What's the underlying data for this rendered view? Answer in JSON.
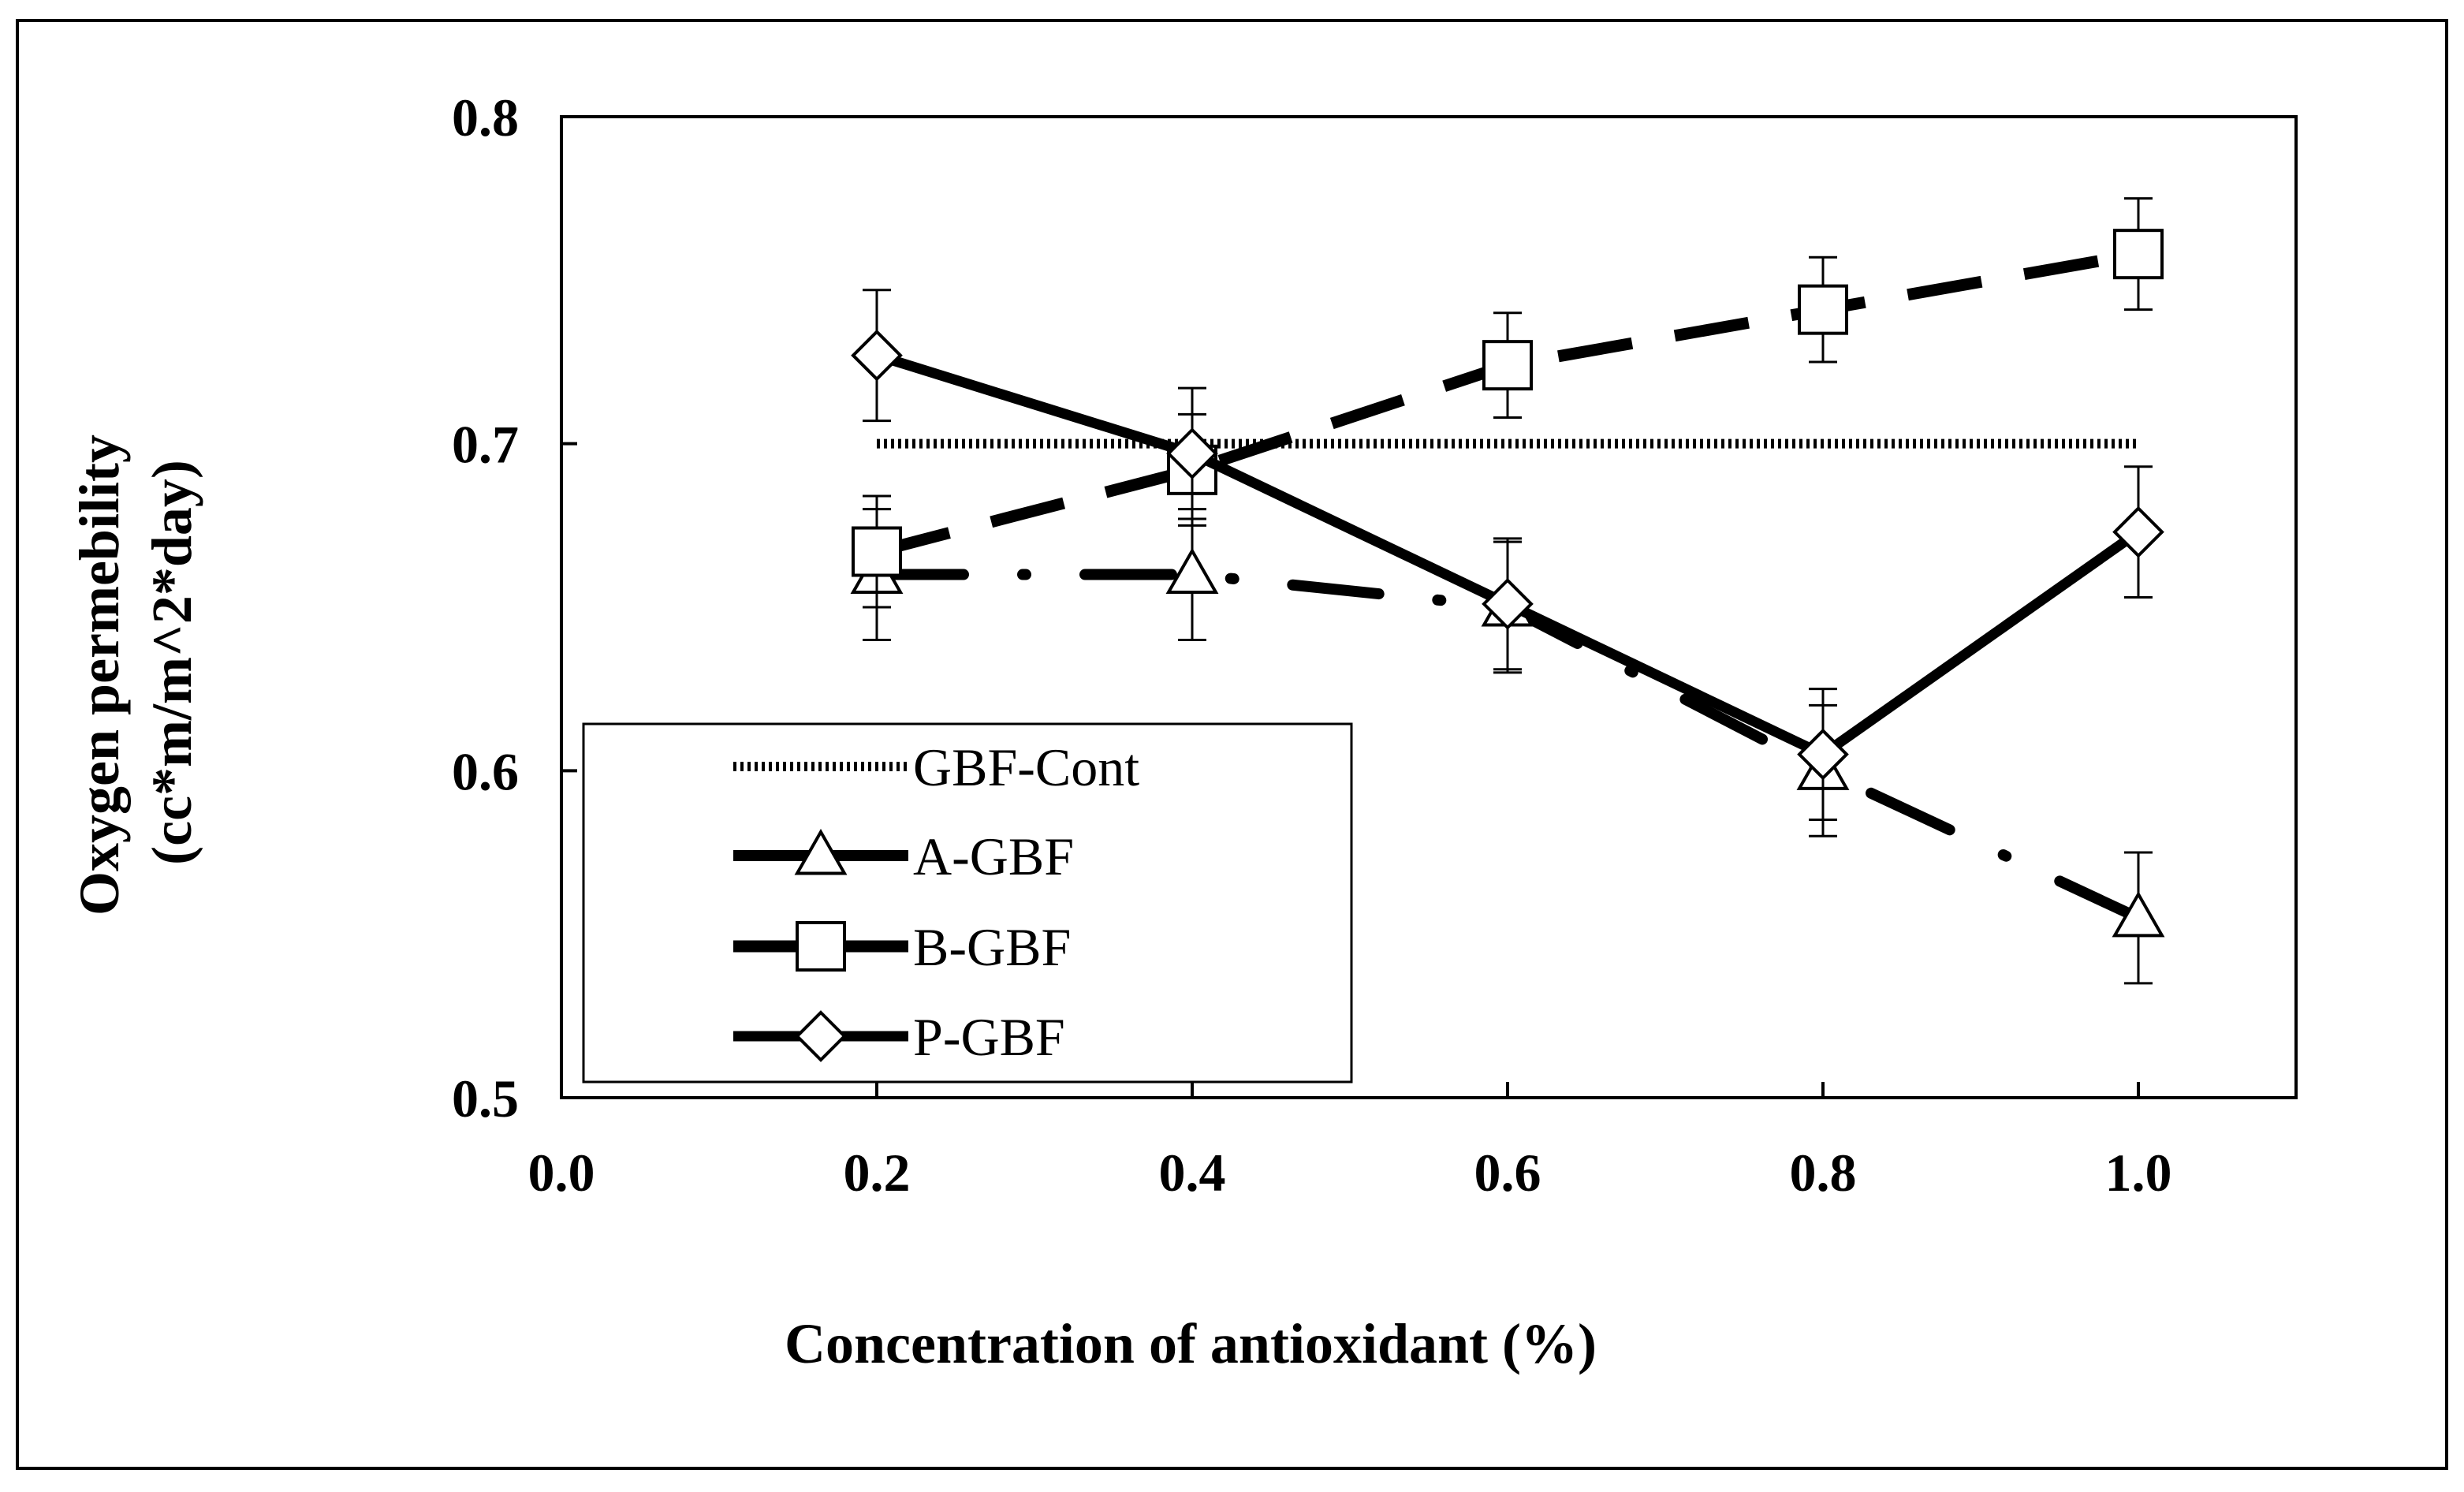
{
  "chart_data": {
    "type": "line",
    "xlabel": "Concentration of antioxidant (%)",
    "ylabel_line1": "Oxygen permebility",
    "ylabel_line2": "(cc*m/m^2*day)",
    "xlim": [
      0.0,
      1.1
    ],
    "ylim": [
      0.5,
      0.8
    ],
    "xticks": [
      0.0,
      0.2,
      0.4,
      0.6,
      0.8,
      1.0
    ],
    "xtick_labels": [
      "0.0",
      "0.2",
      "0.4",
      "0.6",
      "0.8",
      "1.0"
    ],
    "yticks": [
      0.5,
      0.6,
      0.7,
      0.8
    ],
    "ytick_labels": [
      "0.5",
      "0.6",
      "0.7",
      "0.8"
    ],
    "grid": false,
    "legend_position": "bottom-left",
    "series": [
      {
        "name": "GBF-Cont",
        "x": [
          0.2,
          0.4,
          0.6,
          0.8,
          1.0
        ],
        "y": [
          0.7,
          0.7,
          0.7,
          0.7,
          0.7
        ],
        "error": [],
        "marker": "none",
        "line_style": "dotted-thick",
        "color": "#000000"
      },
      {
        "name": "A-GBF",
        "x": [
          0.2,
          0.4,
          0.6,
          0.8,
          1.0
        ],
        "y": [
          0.66,
          0.66,
          0.65,
          0.6,
          0.555
        ],
        "error": [
          0.02,
          0.02,
          0.02,
          0.02,
          0.02
        ],
        "marker": "triangle",
        "line_style": "dash-dot",
        "color": "#000000"
      },
      {
        "name": "B-GBF",
        "x": [
          0.2,
          0.4,
          0.6,
          0.8,
          1.0
        ],
        "y": [
          0.667,
          0.692,
          0.724,
          0.741,
          0.758
        ],
        "error": [
          0.017,
          0.017,
          0.016,
          0.016,
          0.017
        ],
        "marker": "square",
        "line_style": "dashed",
        "color": "#000000"
      },
      {
        "name": "P-GBF",
        "x": [
          0.2,
          0.4,
          0.6,
          0.8,
          1.0
        ],
        "y": [
          0.727,
          0.697,
          0.651,
          0.605,
          0.673
        ],
        "error": [
          0.02,
          0.02,
          0.02,
          0.02,
          0.02
        ],
        "marker": "diamond",
        "line_style": "solid",
        "color": "#000000"
      }
    ]
  }
}
